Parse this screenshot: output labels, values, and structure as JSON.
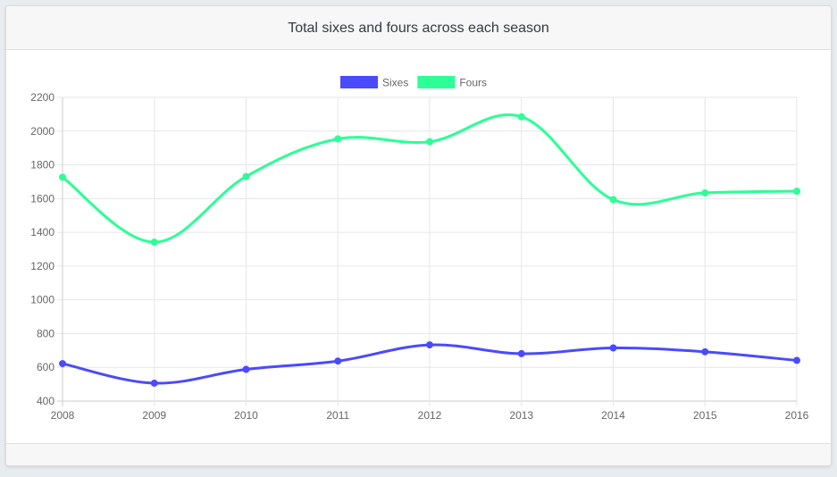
{
  "card": {
    "title": "Total sixes and fours across each season"
  },
  "chart_data": {
    "type": "line",
    "title": "Total sixes and fours across each season",
    "categories": [
      "2008",
      "2009",
      "2010",
      "2011",
      "2012",
      "2013",
      "2014",
      "2015",
      "2016"
    ],
    "series": [
      {
        "name": "Sixes",
        "color": "#4a4aff",
        "values": [
          622,
          506,
          588,
          637,
          733,
          681,
          715,
          692,
          641
        ]
      },
      {
        "name": "Fours",
        "color": "#2bff95",
        "values": [
          1727,
          1342,
          1731,
          1954,
          1937,
          2085,
          1594,
          1634,
          1644
        ]
      }
    ],
    "ylim": [
      400,
      2200
    ],
    "yticks": [
      400,
      600,
      800,
      1000,
      1200,
      1400,
      1600,
      1800,
      2000,
      2200
    ],
    "grid": true,
    "legend": "top-center",
    "smooth": true
  }
}
